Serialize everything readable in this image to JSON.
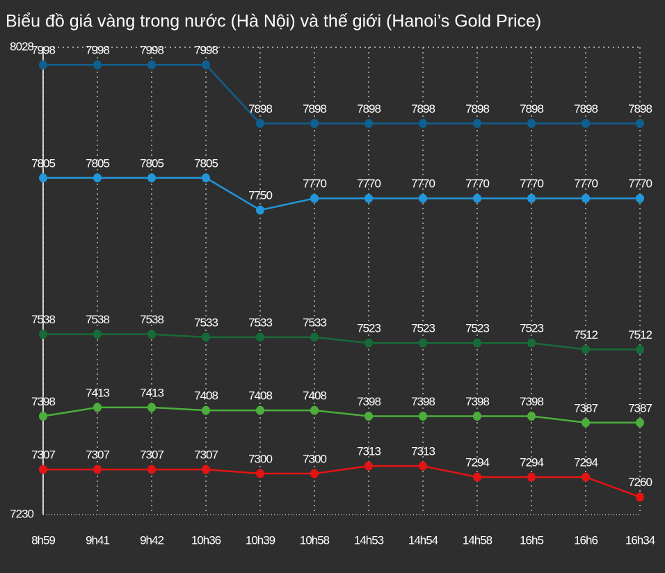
{
  "chart_data": {
    "type": "line",
    "title": "Biểu đồ giá vàng trong nước (Hà Nội) và thế giới (Hanoi’s Gold Price)",
    "categories": [
      "8h59",
      "9h41",
      "9h42",
      "10h36",
      "10h39",
      "10h58",
      "14h53",
      "14h54",
      "14h58",
      "16h5",
      "16h6",
      "16h34"
    ],
    "series": [
      {
        "color": "#0f5f8f",
        "values": [
          7998,
          7998,
          7998,
          7998,
          7898,
          7898,
          7898,
          7898,
          7898,
          7898,
          7898,
          7898
        ]
      },
      {
        "color": "#2196d8",
        "values": [
          7805,
          7805,
          7805,
          7805,
          7750,
          7770,
          7770,
          7770,
          7770,
          7770,
          7770,
          7770
        ]
      },
      {
        "color": "#176b38",
        "values": [
          7538,
          7538,
          7538,
          7533,
          7533,
          7533,
          7523,
          7523,
          7523,
          7523,
          7512,
          7512
        ]
      },
      {
        "color": "#4caf3c",
        "values": [
          7398,
          7413,
          7413,
          7408,
          7408,
          7408,
          7398,
          7398,
          7398,
          7398,
          7387,
          7387
        ]
      },
      {
        "color": "#e31414",
        "values": [
          7307,
          7307,
          7307,
          7307,
          7300,
          7300,
          7313,
          7313,
          7294,
          7294,
          7294,
          7260
        ]
      }
    ],
    "ylim": [
      7230,
      8028
    ],
    "yticks": [
      7230,
      8028
    ],
    "grid": true
  }
}
